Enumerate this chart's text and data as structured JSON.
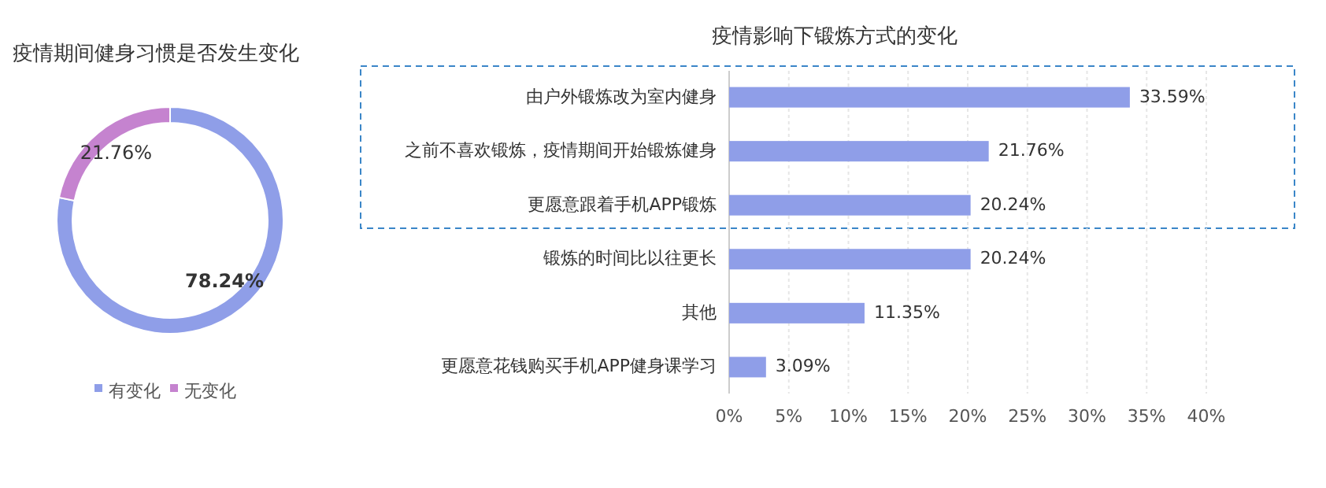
{
  "chart_data": [
    {
      "type": "donut",
      "title": "疫情期间健身习惯是否发生变化",
      "categories": [
        "有变化",
        "无变化"
      ],
      "values": [
        78.24,
        21.76
      ],
      "colors": [
        "#8f9ee8",
        "#c583cf"
      ],
      "value_labels": [
        "78.24%",
        "21.76%"
      ],
      "legend": "bottom"
    },
    {
      "type": "bar",
      "orientation": "horizontal",
      "title": "疫情影响下锻炼方式的变化",
      "categories": [
        "由户外锻炼改为室内健身",
        "之前不喜欢锻炼，疫情期间开始锻炼健身",
        "更愿意跟着手机APP锻炼",
        "锻炼的时间比以往更长",
        "其他",
        "更愿意花钱购买手机APP健身课学习"
      ],
      "values": [
        33.59,
        21.76,
        20.24,
        20.24,
        11.35,
        3.09
      ],
      "color": "#8f9ee8",
      "value_labels": [
        "33.59%",
        "21.76%",
        "20.24%",
        "20.24%",
        "11.35%",
        "3.09%"
      ],
      "xlim": [
        0,
        40
      ],
      "xticks": [
        {
          "value": 0,
          "label": "0%"
        },
        {
          "value": 5,
          "label": "5%"
        },
        {
          "value": 10,
          "label": "10%"
        },
        {
          "value": 15,
          "label": "15%"
        },
        {
          "value": 20,
          "label": "20%"
        },
        {
          "value": 25,
          "label": "25%"
        },
        {
          "value": 30,
          "label": "30%"
        },
        {
          "value": 35,
          "label": "35%"
        },
        {
          "value": 40,
          "label": "40%"
        }
      ],
      "grid": "x"
    }
  ]
}
